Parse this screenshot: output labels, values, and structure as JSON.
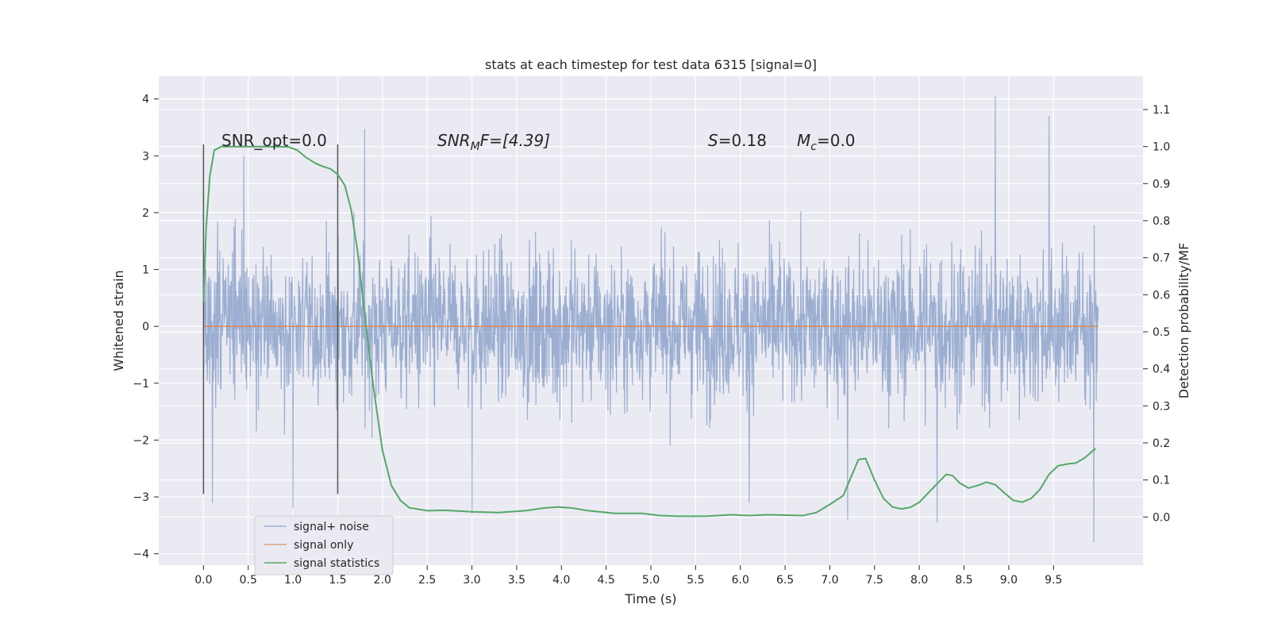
{
  "chart_data": {
    "type": "line",
    "title": "stats at each timestep for test data 6315 [signal=0]",
    "xlabel": "Time (s)",
    "ylabel": "Whitened strain",
    "y2label": "Detection probability/MF",
    "xlim": [
      -0.5,
      10.5
    ],
    "ylim": [
      -4.2,
      4.4
    ],
    "y2lim": [
      -0.13,
      1.19
    ],
    "xticks": [
      0.0,
      0.5,
      1.0,
      1.5,
      2.0,
      2.5,
      3.0,
      3.5,
      4.0,
      4.5,
      5.0,
      5.5,
      6.0,
      6.5,
      7.0,
      7.5,
      8.0,
      8.5,
      9.0,
      9.5
    ],
    "xtick_labels": [
      "0.0",
      "0.5",
      "1.0",
      "1.5",
      "2.0",
      "2.5",
      "3.0",
      "3.5",
      "4.0",
      "4.5",
      "5.0",
      "5.5",
      "6.0",
      "6.5",
      "7.0",
      "7.5",
      "8.0",
      "8.5",
      "9.0",
      "9.5"
    ],
    "yticks": [
      -4,
      -3,
      -2,
      -1,
      0,
      1,
      2,
      3,
      4
    ],
    "ytick_labels": [
      "−4",
      "−3",
      "−2",
      "−1",
      "0",
      "1",
      "2",
      "3",
      "4"
    ],
    "y2ticks": [
      0.0,
      0.1,
      0.2,
      0.3,
      0.4,
      0.5,
      0.6,
      0.7,
      0.8,
      0.9,
      1.0,
      1.1
    ],
    "y2tick_labels": [
      "0.0",
      "0.1",
      "0.2",
      "0.3",
      "0.4",
      "0.5",
      "0.6",
      "0.7",
      "0.8",
      "0.9",
      "1.0",
      "1.1"
    ],
    "grid": true,
    "legend_position": "lower-left",
    "annotations": {
      "snr_opt": "SNR_opt=0.0",
      "snr_mf_prefix": "SNR",
      "snr_mf_sub": "M",
      "snr_mf_suffix": "F=[4.39]",
      "s_label": "S",
      "s_value": "=0.18",
      "mc_label": "M",
      "mc_sub": "c",
      "mc_value": "=0.0"
    },
    "vlines": {
      "x": [
        0.0,
        1.5
      ],
      "y_range": [
        -2.95,
        3.2
      ]
    },
    "series": [
      {
        "name": "signal+ noise",
        "color": "#4c72b0",
        "opacity": 0.5,
        "x_range": [
          0.0,
          10.0
        ],
        "typical_band": [
          -1.6,
          1.5
        ],
        "extremes": [
          {
            "x": 0.1,
            "y": -3.1
          },
          {
            "x": 0.45,
            "y": 3.0
          },
          {
            "x": 1.0,
            "y": -3.2
          },
          {
            "x": 1.8,
            "y": 3.47
          },
          {
            "x": 3.0,
            "y": -3.3
          },
          {
            "x": 6.1,
            "y": -3.1
          },
          {
            "x": 7.2,
            "y": -3.4
          },
          {
            "x": 8.2,
            "y": -3.45
          },
          {
            "x": 8.85,
            "y": 4.05
          },
          {
            "x": 9.45,
            "y": 3.7
          },
          {
            "x": 9.95,
            "y": -3.8
          }
        ]
      },
      {
        "name": "signal only",
        "color": "#dd8452",
        "x": [
          0.0,
          10.0
        ],
        "y": [
          0.0,
          0.0
        ]
      },
      {
        "name": "signal statistics",
        "color": "#55a868",
        "axis": "right",
        "x": [
          0.0,
          0.03,
          0.07,
          0.12,
          0.2,
          0.35,
          0.5,
          0.65,
          0.8,
          0.95,
          1.05,
          1.15,
          1.25,
          1.35,
          1.42,
          1.5,
          1.58,
          1.65,
          1.72,
          1.8,
          1.9,
          2.0,
          2.1,
          2.2,
          2.3,
          2.5,
          2.7,
          3.0,
          3.3,
          3.6,
          3.8,
          3.95,
          4.1,
          4.3,
          4.6,
          4.9,
          5.1,
          5.3,
          5.6,
          5.9,
          6.1,
          6.3,
          6.5,
          6.7,
          6.85,
          7.0,
          7.15,
          7.25,
          7.32,
          7.4,
          7.5,
          7.6,
          7.7,
          7.8,
          7.9,
          8.0,
          8.1,
          8.2,
          8.3,
          8.37,
          8.45,
          8.55,
          8.65,
          8.75,
          8.85,
          8.95,
          9.05,
          9.15,
          9.25,
          9.35,
          9.45,
          9.55,
          9.65,
          9.75,
          9.85,
          9.92,
          9.97
        ],
        "y": [
          0.58,
          0.78,
          0.92,
          0.99,
          1.0,
          1.0,
          1.0,
          1.0,
          1.0,
          0.999,
          0.99,
          0.97,
          0.955,
          0.945,
          0.94,
          0.925,
          0.895,
          0.83,
          0.72,
          0.55,
          0.35,
          0.18,
          0.085,
          0.045,
          0.025,
          0.017,
          0.018,
          0.014,
          0.012,
          0.017,
          0.024,
          0.027,
          0.025,
          0.017,
          0.01,
          0.01,
          0.004,
          0.002,
          0.002,
          0.006,
          0.004,
          0.006,
          0.005,
          0.004,
          0.012,
          0.034,
          0.058,
          0.115,
          0.155,
          0.158,
          0.1,
          0.05,
          0.027,
          0.022,
          0.026,
          0.04,
          0.065,
          0.09,
          0.115,
          0.112,
          0.092,
          0.078,
          0.085,
          0.094,
          0.087,
          0.065,
          0.045,
          0.04,
          0.05,
          0.075,
          0.115,
          0.138,
          0.143,
          0.146,
          0.16,
          0.175,
          0.185
        ]
      }
    ]
  }
}
